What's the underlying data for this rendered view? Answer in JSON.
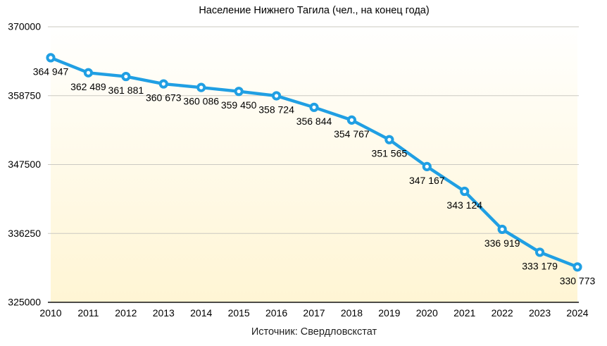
{
  "chart_data": {
    "type": "line",
    "title": "Население Нижнего Тагила (чел., на конец года)",
    "source": "Источник: Свердловскстат",
    "xlabel": "",
    "ylabel": "",
    "x": [
      2010,
      2011,
      2012,
      2013,
      2014,
      2015,
      2016,
      2017,
      2018,
      2019,
      2020,
      2021,
      2022,
      2023,
      2024
    ],
    "values": [
      364947,
      362489,
      361881,
      360673,
      360086,
      359450,
      358724,
      356844,
      354767,
      351565,
      347167,
      343124,
      336919,
      333179,
      330773
    ],
    "point_labels": [
      "364 947",
      "362 489",
      "361 881",
      "360 673",
      "360 086",
      "359 450",
      "358 724",
      "356 844",
      "354 767",
      "351 565",
      "347 167",
      "343 124",
      "336 919",
      "333 179",
      "330 773"
    ],
    "y_ticks": [
      325000,
      336250,
      347500,
      358750,
      370000
    ],
    "y_tick_labels": [
      "325000",
      "336250",
      "347500",
      "358750",
      "370000"
    ],
    "ylim": [
      325000,
      370000
    ],
    "grid": true,
    "legend": false,
    "marker": "open-circle",
    "colors": {
      "line": "#209FE3",
      "marker_fill": "#FFFFFF",
      "grid": "#CBCAC2",
      "axis": "#111111",
      "text": "#000000",
      "plot_bg_top": "#FFFFFE",
      "plot_bg_bottom": "#FFF5D4",
      "page_bg": "#FFFFFF"
    }
  }
}
